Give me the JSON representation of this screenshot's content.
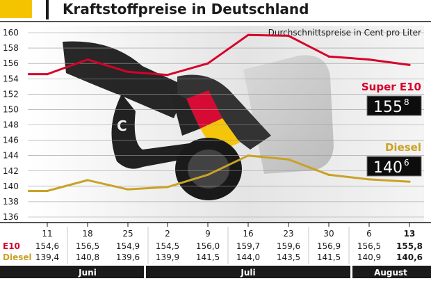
{
  "title": "Kraftstoffpreise in Deutschland",
  "colors": {
    "accent": "#f5c400",
    "e10": "#d6002a",
    "diesel": "#c9a227",
    "frame": "#1a1a1a",
    "grid": "#9a9a9a",
    "display_bg": "#0d0d0d"
  },
  "row_labels": {
    "e10": "E10",
    "diesel": "Diesel"
  },
  "callouts": {
    "e10_label": "Super E10",
    "e10_display_main": "155",
    "e10_display_frac": "8",
    "diesel_label": "Diesel",
    "diesel_display_main": "140",
    "diesel_display_frac": "6"
  },
  "months": [
    {
      "label": "Juni"
    },
    {
      "label": "Juli"
    },
    {
      "label": "August"
    }
  ],
  "chart_data": {
    "type": "line",
    "title": "Kraftstoffpreise in Deutschland",
    "subtitle": "Durchschnittspreise in Cent pro Liter",
    "xlabel": "",
    "ylabel": "",
    "ylim": [
      135,
      160
    ],
    "yticks": [
      136,
      138,
      140,
      142,
      144,
      146,
      148,
      150,
      152,
      154,
      156,
      158,
      160
    ],
    "grid": true,
    "x": [
      "11",
      "18",
      "25",
      "2",
      "9",
      "16",
      "23",
      "30",
      "6",
      "13"
    ],
    "series": [
      {
        "name": "Super E10",
        "color": "#d6002a",
        "values": [
          154.6,
          156.5,
          154.9,
          154.5,
          156.0,
          159.7,
          159.6,
          156.9,
          156.5,
          155.8
        ],
        "labels": [
          "154,6",
          "156,5",
          "154,9",
          "154,5",
          "156,0",
          "159,7",
          "159,6",
          "156,9",
          "156,5",
          "155,8"
        ]
      },
      {
        "name": "Diesel",
        "color": "#c9a227",
        "values": [
          139.4,
          140.8,
          139.6,
          139.9,
          141.5,
          144.0,
          143.5,
          141.5,
          140.9,
          140.6
        ],
        "labels": [
          "139,4",
          "140,8",
          "139,6",
          "139,9",
          "141,5",
          "144,0",
          "143,5",
          "141,5",
          "140,9",
          "140,6"
        ]
      }
    ]
  }
}
